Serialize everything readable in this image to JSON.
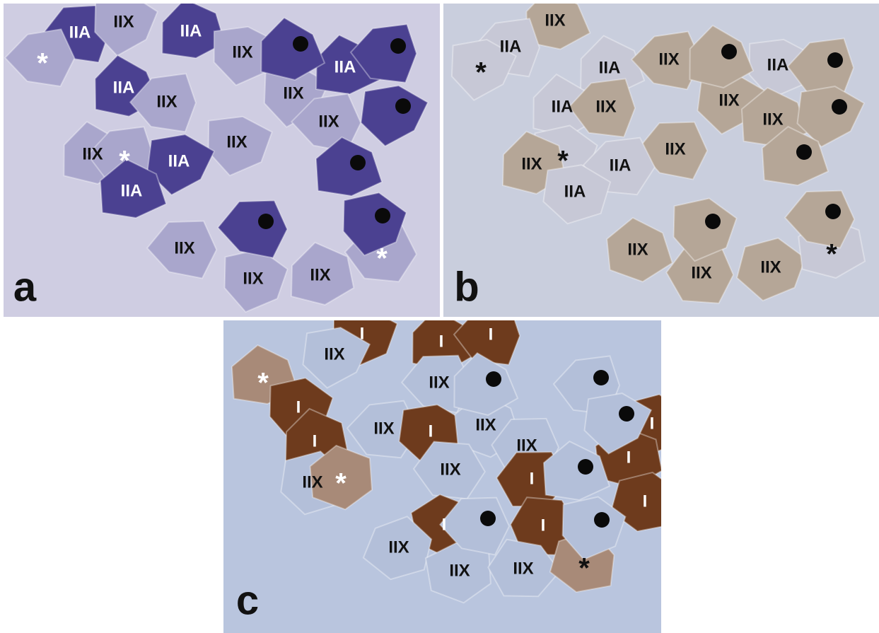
{
  "panels": [
    {
      "letter": "a",
      "labels": [
        "IIA",
        "IIX",
        "IIA",
        "*",
        "IIX",
        "IIA",
        "IIX",
        "IIX",
        "IIA",
        "IIX",
        "IIX",
        "IIX",
        "*",
        "IIA",
        "IIA",
        "IIX",
        "IIX",
        "IIX",
        "*"
      ]
    },
    {
      "letter": "b",
      "labels": [
        "IIX",
        "IIA",
        "*",
        "IIA",
        "IIX",
        "IIA",
        "IIA",
        "IIX",
        "IIX",
        "IIX",
        "IIX",
        "*",
        "IIX",
        "IIA",
        "IIA",
        "IIX",
        "IIX",
        "IIX",
        "*"
      ]
    },
    {
      "letter": "c",
      "labels": [
        "I",
        "I",
        "I",
        "IIX",
        "*",
        "IIX",
        "I",
        "I",
        "IIX",
        "I",
        "IIX",
        "IIX",
        "I",
        "I",
        "IIX",
        "IIX",
        "*",
        "I",
        "I",
        "I",
        "I",
        "IIX",
        "IIX",
        "IIX",
        "*"
      ]
    }
  ]
}
